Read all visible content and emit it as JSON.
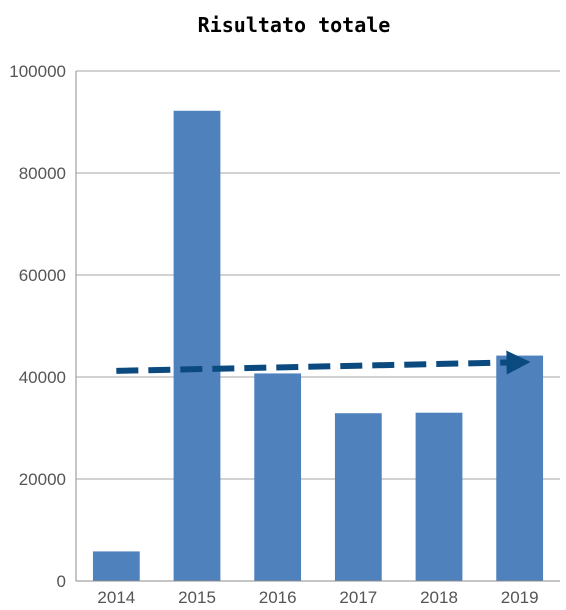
{
  "chart_data": {
    "type": "bar",
    "title": "Risultato totale",
    "xlabel": "",
    "ylabel": "",
    "categories": [
      "2014",
      "2015",
      "2016",
      "2017",
      "2018",
      "2019"
    ],
    "values": [
      5800,
      92200,
      40700,
      32900,
      33000,
      44200
    ],
    "ylim": [
      0,
      100000
    ],
    "yticks": [
      "0",
      "20000",
      "40000",
      "60000",
      "80000",
      "100000"
    ],
    "grid": true,
    "legend": "none",
    "bar_color": "#4f81bd",
    "trendline": {
      "style": "dashed-arrow",
      "color": "#0b4a7f",
      "start": 41200,
      "end": 42900
    }
  }
}
